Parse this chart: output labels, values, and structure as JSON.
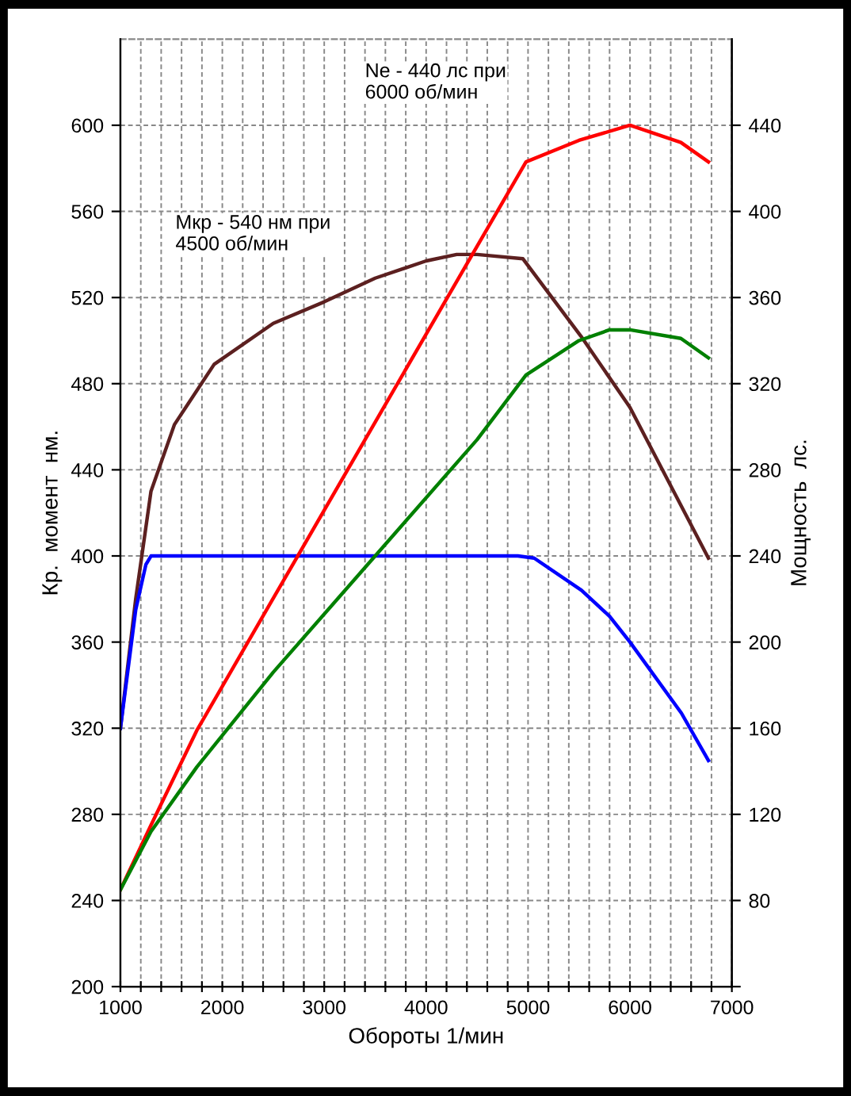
{
  "chart_data": {
    "type": "line",
    "xlabel": "Обороты 1/мин",
    "ylabel": "Кр.  момент  нм.",
    "y2label": "Мощность  лс.",
    "xlim": [
      1000,
      7000
    ],
    "xticks": [
      1000,
      {
        "value": 1200,
        "label": null
      },
      {
        "value": 1400,
        "label": null
      },
      {
        "value": 1600,
        "label": null
      },
      {
        "value": 1800,
        "label": null
      },
      2000,
      {
        "value": 2200,
        "label": null
      },
      {
        "value": 2400,
        "label": null
      },
      {
        "value": 2600,
        "label": null
      },
      {
        "value": 2800,
        "label": null
      },
      3000,
      {
        "value": 3200,
        "label": null
      },
      {
        "value": 3400,
        "label": null
      },
      {
        "value": 3600,
        "label": null
      },
      {
        "value": 3800,
        "label": null
      },
      4000,
      {
        "value": 4200,
        "label": null
      },
      {
        "value": 4400,
        "label": null
      },
      {
        "value": 4600,
        "label": null
      },
      {
        "value": 4800,
        "label": null
      },
      5000,
      {
        "value": 5200,
        "label": null
      },
      {
        "value": 5400,
        "label": null
      },
      {
        "value": 5600,
        "label": null
      },
      {
        "value": 5800,
        "label": null
      },
      6000,
      {
        "value": 6200,
        "label": null
      },
      {
        "value": 6400,
        "label": null
      },
      {
        "value": 6600,
        "label": null
      },
      {
        "value": 6800,
        "label": null
      },
      7000
    ],
    "ylim": [
      200,
      640
    ],
    "yticks": [
      200,
      240,
      280,
      320,
      360,
      400,
      440,
      480,
      520,
      560,
      600
    ],
    "y2lim": [
      40,
      480
    ],
    "y2ticks": [
      {
        "value": 40,
        "label": null
      },
      80,
      120,
      160,
      200,
      240,
      280,
      320,
      360,
      400,
      440
    ],
    "grid": true,
    "line_style": "solid",
    "marker": "none",
    "annotations": [
      "Ne - 440 лс при\n6000 об/мин",
      "Mкр - 540 нм при\n4500 об/мин"
    ],
    "series": [
      {
        "color": "#ff0000",
        "axis": "y2",
        "x": [
          1000,
          1300,
          1750,
          2740,
          4000,
          4980,
          5500,
          6000,
          6500,
          6770
        ],
        "values": [
          85,
          115,
          159,
          240,
          343,
          423,
          433,
          440,
          432,
          423
        ]
      },
      {
        "color": "#008000",
        "axis": "y2",
        "x": [
          1000,
          1300,
          1750,
          2500,
          3500,
          4500,
          4980,
          5500,
          5800,
          6000,
          6500,
          6770
        ],
        "values": [
          85,
          112,
          142,
          186,
          240,
          294,
          324,
          340,
          345,
          345,
          341,
          332
        ]
      },
      {
        "color": "#5c2020",
        "x": [
          1000,
          1150,
          1300,
          1530,
          1920,
          2500,
          3000,
          3500,
          4000,
          4300,
          4500,
          4950,
          5520,
          6000,
          6770
        ],
        "values": [
          320,
          380,
          430,
          461,
          489,
          508,
          518,
          529,
          537,
          540,
          540,
          538,
          502,
          469,
          399
        ]
      },
      {
        "color": "#0000ff",
        "x": [
          1000,
          1150,
          1250,
          1300,
          2000,
          3000,
          4000,
          4900,
          5060,
          5525,
          5800,
          6000,
          6505,
          6770
        ],
        "values": [
          320,
          375,
          396,
          400,
          400,
          400,
          400,
          400,
          399,
          384,
          372,
          360,
          327,
          305
        ]
      }
    ]
  }
}
